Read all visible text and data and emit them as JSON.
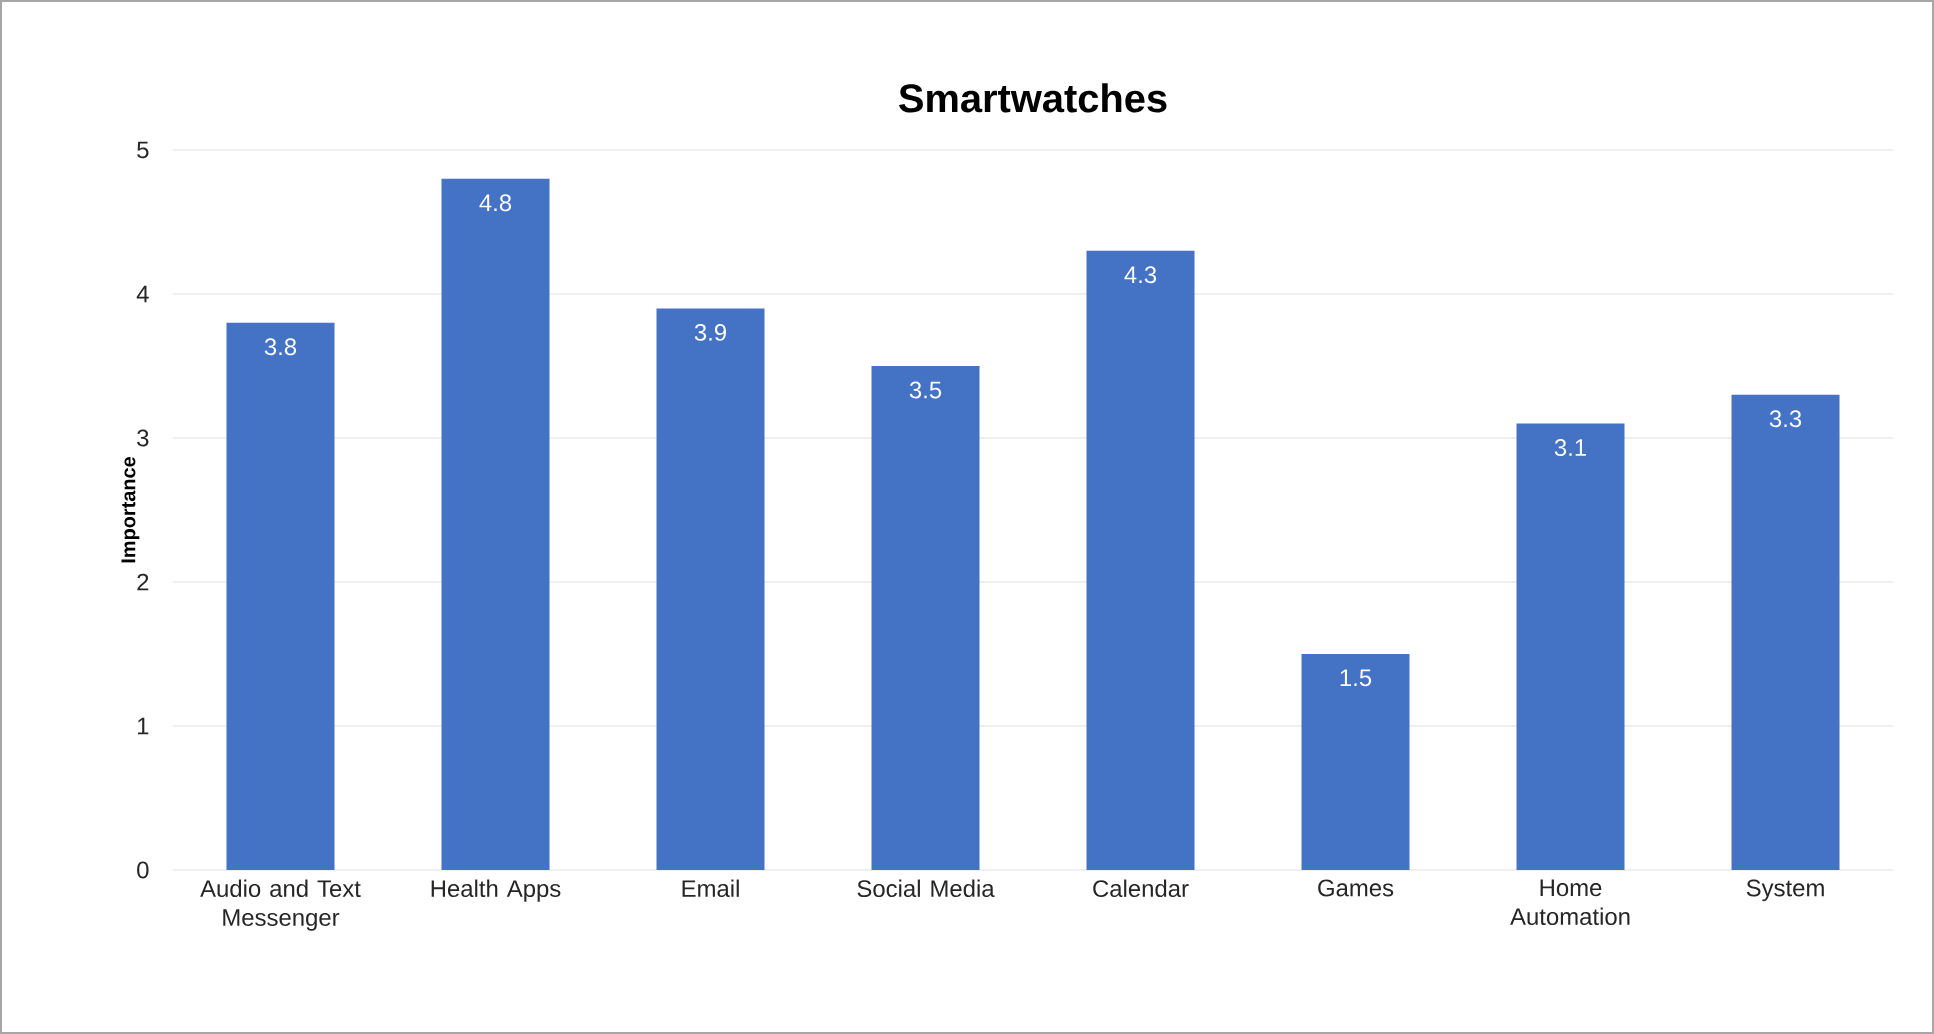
{
  "chart_data": {
    "type": "bar",
    "title": "Smartwatches",
    "ylabel": "Importance",
    "categories": [
      "Audio and Text Messenger",
      "Health Apps",
      "Email",
      "Social Media",
      "Calendar",
      "Games",
      "Home Automation",
      "System"
    ],
    "values": [
      3.8,
      4.8,
      3.9,
      3.5,
      4.3,
      1.5,
      3.1,
      3.3
    ],
    "color": "#4472c4",
    "ylim": [
      0,
      5
    ],
    "yticks": [
      0,
      1,
      2,
      3,
      4,
      5
    ],
    "grid": "y",
    "data_labels": true
  }
}
